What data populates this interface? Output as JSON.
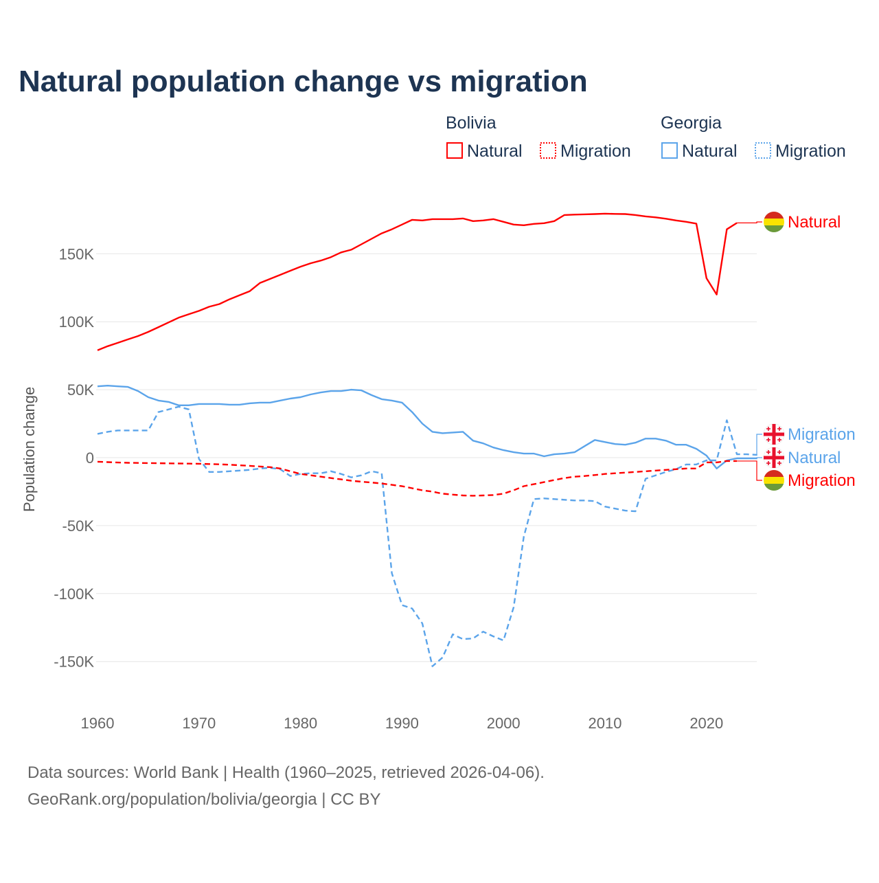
{
  "title": "Natural population change vs migration",
  "legend": {
    "groups": [
      {
        "name": "Bolivia",
        "items": [
          "Natural",
          "Migration"
        ],
        "color": "#ff0000"
      },
      {
        "name": "Georgia",
        "items": [
          "Natural",
          "Migration"
        ],
        "color": "#5ba4ea"
      }
    ]
  },
  "footer": {
    "line1": "Data sources: World Bank | Health (1960–2025, retrieved 2026-04-06).",
    "line2": "GeoRank.org/population/bolivia/georgia | CC BY"
  },
  "chart_data": {
    "type": "line",
    "title": "Natural population change vs migration",
    "xlabel": "",
    "ylabel": "Population change",
    "x_ticks": [
      "1960",
      "1970",
      "1980",
      "1990",
      "2000",
      "2010",
      "2020"
    ],
    "y_ticks": [
      {
        "value": 150000,
        "label": "150K"
      },
      {
        "value": 100000,
        "label": "100K"
      },
      {
        "value": 50000,
        "label": "50K"
      },
      {
        "value": 0,
        "label": "0"
      },
      {
        "value": -50000,
        "label": "-50K"
      },
      {
        "value": -100000,
        "label": "-100K"
      },
      {
        "value": -150000,
        "label": "-150K"
      }
    ],
    "xlim": [
      1960,
      2025
    ],
    "ylim": [
      -180000,
      200000
    ],
    "grid": true,
    "legend_position": "top-right",
    "series": [
      {
        "name": "Bolivia Natural",
        "end_label": "Natural",
        "country": "Bolivia",
        "color": "#ff0000",
        "dash": false,
        "start": 1960,
        "values": [
          79000,
          82000,
          84500,
          87000,
          89500,
          92500,
          96000,
          99500,
          103000,
          105500,
          108000,
          111000,
          113000,
          116500,
          119500,
          122500,
          128500,
          131500,
          134500,
          137500,
          140500,
          143000,
          145000,
          147500,
          151000,
          153000,
          157000,
          161000,
          165000,
          168000,
          171500,
          175000,
          174500,
          175500,
          175500,
          175500,
          176000,
          174000,
          174500,
          175500,
          173500,
          171500,
          171000,
          172000,
          172500,
          174000,
          178500,
          178800,
          179000,
          179200,
          179500,
          179300,
          179200,
          178500,
          177500,
          176800,
          175800,
          174500,
          173500,
          172200,
          132000,
          120000,
          168000,
          172700
        ]
      },
      {
        "name": "Bolivia Migration",
        "end_label": "Migration",
        "country": "Bolivia",
        "color": "#ff0000",
        "dash": true,
        "start": 1960,
        "values": [
          -3000,
          -3300,
          -3600,
          -3800,
          -3900,
          -4000,
          -4100,
          -4200,
          -4300,
          -4400,
          -4500,
          -4700,
          -4900,
          -5200,
          -5600,
          -6000,
          -6500,
          -7000,
          -8000,
          -10000,
          -12000,
          -13000,
          -14000,
          -15000,
          -16000,
          -17000,
          -17700,
          -18300,
          -19000,
          -20000,
          -21000,
          -22500,
          -24000,
          -25000,
          -26500,
          -27200,
          -27800,
          -28000,
          -27800,
          -27500,
          -26500,
          -24000,
          -21000,
          -19500,
          -18000,
          -16500,
          -15000,
          -14000,
          -13500,
          -12800,
          -12000,
          -11500,
          -11000,
          -10500,
          -10000,
          -9500,
          -9000,
          -8500,
          -8000,
          -8000,
          -3500,
          -3500,
          -2500,
          -2500
        ]
      },
      {
        "name": "Georgia Natural",
        "end_label": "Natural",
        "country": "Georgia",
        "color": "#5ba4ea",
        "dash": false,
        "start": 1960,
        "values": [
          52500,
          53000,
          52500,
          52000,
          49000,
          44500,
          42000,
          41000,
          38500,
          38500,
          39500,
          39500,
          39500,
          39000,
          39000,
          40000,
          40500,
          40500,
          42000,
          43500,
          44500,
          46500,
          48000,
          49000,
          49000,
          50000,
          49500,
          46000,
          43000,
          42000,
          40500,
          33500,
          25000,
          19000,
          18000,
          18500,
          19000,
          12500,
          10500,
          7500,
          5500,
          4000,
          3000,
          3000,
          1000,
          2500,
          3000,
          4000,
          8500,
          13000,
          11500,
          10000,
          9500,
          11000,
          14000,
          14000,
          12500,
          9500,
          9500,
          6500,
          1500,
          -8000,
          -2000,
          -500,
          -500,
          -500
        ]
      },
      {
        "name": "Georgia Migration",
        "end_label": "Migration",
        "country": "Georgia",
        "color": "#5ba4ea",
        "dash": true,
        "start": 1960,
        "values": [
          17500,
          19000,
          20000,
          20000,
          20000,
          20000,
          33500,
          35500,
          37500,
          35500,
          -1000,
          -10500,
          -10500,
          -10000,
          -9500,
          -9000,
          -8000,
          -7500,
          -8500,
          -13500,
          -12000,
          -11500,
          -11500,
          -10000,
          -12000,
          -14500,
          -13000,
          -10000,
          -11500,
          -85000,
          -108500,
          -111000,
          -122000,
          -153500,
          -147000,
          -130000,
          -133500,
          -133000,
          -128000,
          -131500,
          -134500,
          -110000,
          -58000,
          -30500,
          -30000,
          -30500,
          -31000,
          -31500,
          -31500,
          -32000,
          -36000,
          -37500,
          -39000,
          -39500,
          -15500,
          -13000,
          -10500,
          -8500,
          -5000,
          -5000,
          -2000,
          -2000,
          27500,
          2500,
          2500,
          2000
        ]
      }
    ]
  }
}
